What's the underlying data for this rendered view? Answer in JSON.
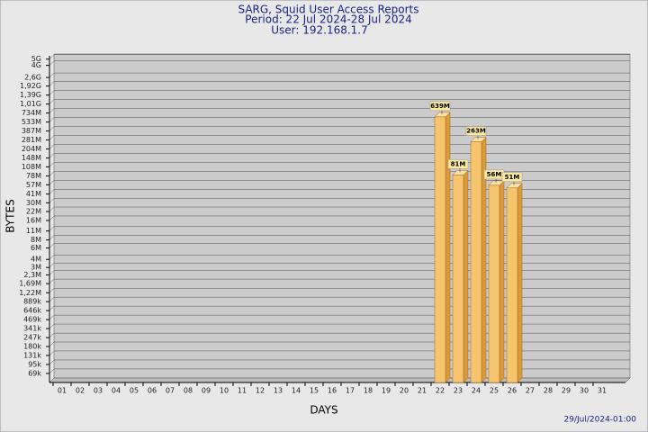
{
  "chart_data": {
    "type": "bar",
    "title": "SARG, Squid User Access Reports",
    "subtitle": [
      "Period: 22 Jul 2024-28 Jul 2024",
      "User: 192.168.1.7"
    ],
    "xlabel": "DAYS",
    "ylabel": "BYTES",
    "footer": "29/Jul/2024-01:00",
    "categories": [
      "01",
      "02",
      "03",
      "04",
      "05",
      "06",
      "07",
      "08",
      "09",
      "10",
      "11",
      "12",
      "13",
      "14",
      "15",
      "16",
      "17",
      "18",
      "19",
      "20",
      "21",
      "22",
      "23",
      "24",
      "25",
      "26",
      "27",
      "28",
      "29",
      "30",
      "31"
    ],
    "values": [
      null,
      null,
      null,
      null,
      null,
      null,
      null,
      null,
      null,
      null,
      null,
      null,
      null,
      null,
      null,
      null,
      null,
      null,
      null,
      null,
      null,
      639000000,
      81000000,
      263000000,
      56000000,
      51000000,
      null,
      null,
      null,
      null,
      null
    ],
    "value_labels": [
      null,
      null,
      null,
      null,
      null,
      null,
      null,
      null,
      null,
      null,
      null,
      null,
      null,
      null,
      null,
      null,
      null,
      null,
      null,
      null,
      null,
      "639M",
      "81M",
      "263M",
      "56M",
      "51M",
      null,
      null,
      null,
      null,
      null
    ],
    "color": "#f6c46c",
    "yscale": "log",
    "grid": true,
    "ylim": [
      50000,
      6000000000
    ],
    "yticks": [
      {
        "value": 5000000000,
        "label": "5G"
      },
      {
        "value": 4000000000,
        "label": "4G"
      },
      {
        "value": 2600000000,
        "label": "2,6G"
      },
      {
        "value": 1920000000,
        "label": "1,92G"
      },
      {
        "value": 1390000000,
        "label": "1,39G"
      },
      {
        "value": 1010000000,
        "label": "1,01G"
      },
      {
        "value": 734000000,
        "label": "734M"
      },
      {
        "value": 533000000,
        "label": "533M"
      },
      {
        "value": 387000000,
        "label": "387M"
      },
      {
        "value": 281000000,
        "label": "281M"
      },
      {
        "value": 204000000,
        "label": "204M"
      },
      {
        "value": 148000000,
        "label": "148M"
      },
      {
        "value": 108000000,
        "label": "108M"
      },
      {
        "value": 78000000,
        "label": "78M"
      },
      {
        "value": 57000000,
        "label": "57M"
      },
      {
        "value": 41000000,
        "label": "41M"
      },
      {
        "value": 30000000,
        "label": "30M"
      },
      {
        "value": 22000000,
        "label": "22M"
      },
      {
        "value": 16000000,
        "label": "16M"
      },
      {
        "value": 11000000,
        "label": "11M"
      },
      {
        "value": 8000000,
        "label": "8M"
      },
      {
        "value": 6000000,
        "label": "6M"
      },
      {
        "value": 4000000,
        "label": "4M"
      },
      {
        "value": 3000000,
        "label": "3M"
      },
      {
        "value": 2300000,
        "label": "2,3M"
      },
      {
        "value": 1690000,
        "label": "1,69M"
      },
      {
        "value": 1220000,
        "label": "1,22M"
      },
      {
        "value": 889000,
        "label": "889k"
      },
      {
        "value": 646000,
        "label": "646k"
      },
      {
        "value": 469000,
        "label": "469k"
      },
      {
        "value": 341000,
        "label": "341k"
      },
      {
        "value": 247000,
        "label": "247k"
      },
      {
        "value": 180000,
        "label": "180k"
      },
      {
        "value": 131000,
        "label": "131k"
      },
      {
        "value": 95000,
        "label": "95k"
      },
      {
        "value": 69000,
        "label": "69k"
      }
    ]
  }
}
